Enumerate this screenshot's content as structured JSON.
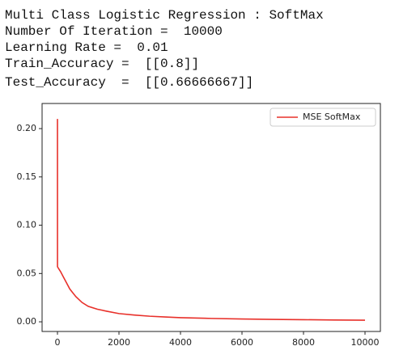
{
  "output_lines": [
    "Multi Class Logistic Regression : SoftMax",
    "Number Of Iteration =  10000",
    "Learning Rate =  0.01",
    "Train_Accuracy =  [[0.8]]",
    "Test_Accuracy  =  [[0.66666667]]"
  ],
  "chart_data": {
    "type": "line",
    "x": [
      0,
      1,
      20,
      60,
      100,
      200,
      300,
      400,
      500,
      600,
      800,
      1000,
      1300,
      1600,
      2000,
      2500,
      3000,
      3500,
      4000,
      5000,
      6000,
      7000,
      8000,
      9000,
      10000
    ],
    "series": [
      {
        "name": "MSE SoftMax",
        "color": "#e8302a",
        "values": [
          0.21,
          0.057,
          0.056,
          0.054,
          0.052,
          0.046,
          0.04,
          0.034,
          0.03,
          0.026,
          0.02,
          0.016,
          0.013,
          0.011,
          0.0085,
          0.007,
          0.0058,
          0.005,
          0.0043,
          0.0035,
          0.0029,
          0.0025,
          0.0022,
          0.0019,
          0.0017
        ]
      }
    ],
    "xlim": [
      -500,
      10500
    ],
    "ylim": [
      -0.01,
      0.226
    ],
    "xticks": [
      0,
      2000,
      4000,
      6000,
      8000,
      10000
    ],
    "yticks": [
      {
        "value": 0,
        "label": "0.00"
      },
      {
        "value": 0.05,
        "label": "0.05"
      },
      {
        "value": 0.1,
        "label": "0.10"
      },
      {
        "value": 0.15,
        "label": "0.15"
      },
      {
        "value": 0.2,
        "label": "0.20"
      }
    ],
    "legend": "upper right"
  }
}
